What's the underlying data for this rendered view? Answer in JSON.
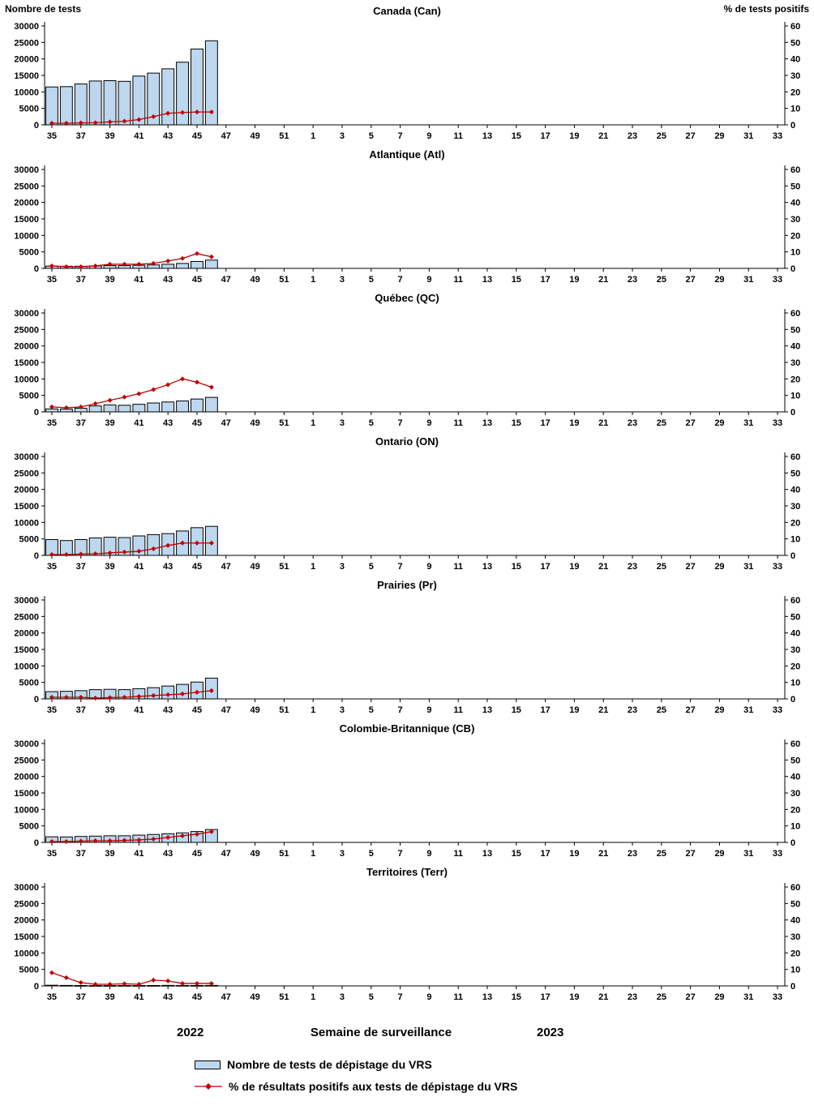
{
  "axes": {
    "left_label": "Nombre de tests",
    "right_label": "% de tests positifs",
    "x_label": "Semaine de surveillance",
    "year_left": "2022",
    "year_right": "2023",
    "left_ticks": [
      0,
      5000,
      10000,
      15000,
      20000,
      25000,
      30000
    ],
    "right_ticks": [
      0,
      10,
      20,
      30,
      40,
      50,
      60
    ],
    "left_max": 30000,
    "right_max": 60,
    "ylim_left": [
      0,
      30000
    ],
    "ylim_right": [
      0,
      60
    ],
    "x_tick_labels": [
      "35",
      "37",
      "39",
      "41",
      "43",
      "45",
      "47",
      "49",
      "51",
      "1",
      "3",
      "5",
      "7",
      "9",
      "11",
      "13",
      "15",
      "17",
      "19",
      "21",
      "23",
      "25",
      "27",
      "29",
      "31",
      "33"
    ]
  },
  "colors": {
    "bar_fill": "#BDD7EE",
    "bar_stroke": "#000000",
    "line": "#C00000"
  },
  "legend": [
    {
      "type": "bar",
      "label": "Nombre de tests de dépistage du VRS"
    },
    {
      "type": "line",
      "label": "% de résultats positifs aux tests de dépistage du VRS"
    }
  ],
  "chart_data": [
    {
      "type": "bar+line",
      "title": "Canada (Can)",
      "weeks": [
        35,
        36,
        37,
        38,
        39,
        40,
        41,
        42,
        43,
        44,
        45,
        46
      ],
      "tests": [
        11500,
        11600,
        12400,
        13300,
        13400,
        13200,
        14800,
        15700,
        17000,
        19000,
        23000,
        25500
      ],
      "pct_positive": [
        1,
        1,
        1.2,
        1.3,
        1.8,
        2.2,
        3.2,
        5,
        7,
        7.5,
        7.8,
        7.8
      ]
    },
    {
      "type": "bar+line",
      "title": "Atlantique (Atl)",
      "weeks": [
        35,
        36,
        37,
        38,
        39,
        40,
        41,
        42,
        43,
        44,
        45,
        46
      ],
      "tests": [
        700,
        650,
        650,
        750,
        850,
        850,
        950,
        1050,
        1250,
        1500,
        2100,
        2500
      ],
      "pct_positive": [
        1.5,
        1,
        1,
        1.5,
        2.5,
        2.5,
        2.5,
        3,
        4.5,
        6,
        9,
        7
      ]
    },
    {
      "type": "bar+line",
      "title": "Québec (QC)",
      "weeks": [
        35,
        36,
        37,
        38,
        39,
        40,
        41,
        42,
        43,
        44,
        45,
        46
      ],
      "tests": [
        900,
        850,
        1100,
        1800,
        2100,
        2000,
        2300,
        2700,
        3000,
        3300,
        3900,
        4400
      ],
      "pct_positive": [
        3,
        2.5,
        3,
        5,
        7,
        9,
        11,
        13.5,
        16.5,
        20,
        18,
        15
      ]
    },
    {
      "type": "bar+line",
      "title": "Ontario (ON)",
      "weeks": [
        35,
        36,
        37,
        38,
        39,
        40,
        41,
        42,
        43,
        44,
        45,
        46
      ],
      "tests": [
        4800,
        4500,
        4800,
        5300,
        5500,
        5400,
        5900,
        6300,
        6600,
        7400,
        8400,
        8800
      ],
      "pct_positive": [
        0.5,
        0.5,
        0.8,
        1,
        1.5,
        2,
        2.5,
        4,
        6,
        7.5,
        7.5,
        7.5
      ]
    },
    {
      "type": "bar+line",
      "title": "Prairies (Pr)",
      "weeks": [
        35,
        36,
        37,
        38,
        39,
        40,
        41,
        42,
        43,
        44,
        45,
        46
      ],
      "tests": [
        2200,
        2300,
        2500,
        2800,
        2900,
        2800,
        3100,
        3400,
        3900,
        4400,
        5100,
        6300
      ],
      "pct_positive": [
        1,
        1,
        1,
        0.5,
        0.8,
        1,
        1.5,
        2,
        2.5,
        3,
        4,
        5
      ]
    },
    {
      "type": "bar+line",
      "title": "Colombie-Britannique (CB)",
      "weeks": [
        35,
        36,
        37,
        38,
        39,
        40,
        41,
        42,
        43,
        44,
        45,
        46
      ],
      "tests": [
        1700,
        1650,
        1800,
        1900,
        2000,
        2000,
        2200,
        2400,
        2600,
        2900,
        3300,
        3900
      ],
      "pct_positive": [
        0.5,
        0.5,
        0.8,
        1,
        1,
        1.2,
        1.5,
        2,
        3,
        4,
        5,
        6.5
      ]
    },
    {
      "type": "bar+line",
      "title": "Territoires (Terr)",
      "weeks": [
        35,
        36,
        37,
        38,
        39,
        40,
        41,
        42,
        43,
        44,
        45,
        46
      ],
      "tests": [
        200,
        150,
        120,
        100,
        100,
        120,
        110,
        130,
        160,
        140,
        130,
        150
      ],
      "pct_positive": [
        8,
        5,
        2,
        1,
        1,
        1.3,
        1,
        3.5,
        3,
        1.5,
        1.5,
        1.5
      ]
    }
  ]
}
